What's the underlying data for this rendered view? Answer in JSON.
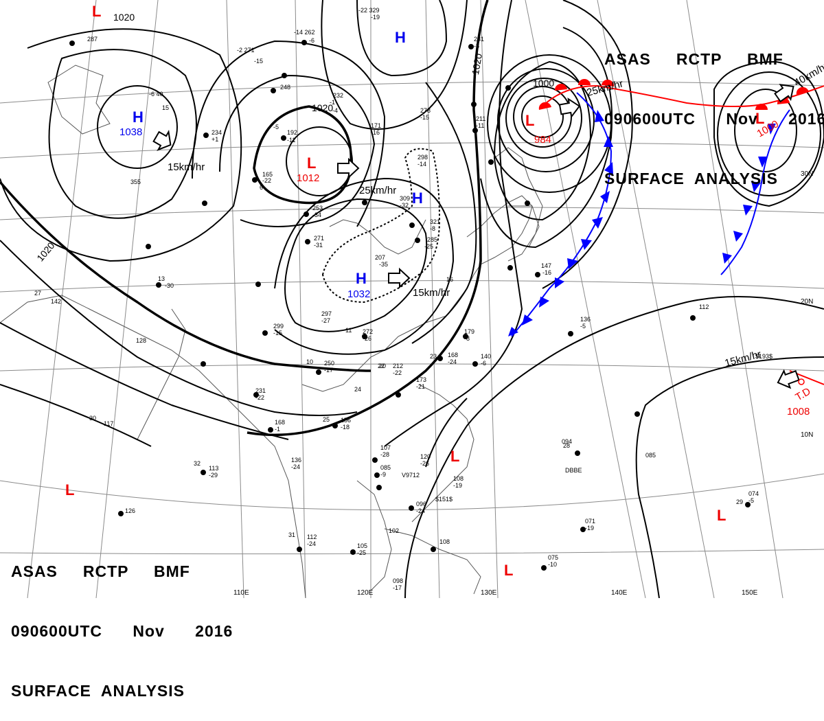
{
  "title": {
    "station_line": "ASAS     RCTP     BMF",
    "time_line": "090600UTC      Nov      2016",
    "product_line": "SURFACE  ANALYSIS"
  },
  "colors": {
    "isobar": "#000000",
    "high": "#0000ee",
    "low": "#ee0000",
    "cold_front": "#0000ff",
    "warm_front": "#ff0000",
    "grid": "#777777",
    "coast": "#444444"
  },
  "pressure_systems": [
    {
      "id": "high-siberia",
      "type": "H",
      "label": "H",
      "value": "1038"
    },
    {
      "id": "low-mongolia",
      "type": "L",
      "label": "L",
      "value": "1012"
    },
    {
      "id": "high-china",
      "type": "H",
      "label": "H",
      "value": "1032"
    },
    {
      "id": "high-korea",
      "type": "H",
      "label": "H",
      "value": ""
    },
    {
      "id": "high-north",
      "type": "H",
      "label": "H",
      "value": ""
    },
    {
      "id": "low-okhotsk",
      "type": "L",
      "label": "L",
      "value": "984"
    },
    {
      "id": "low-pacific-ne",
      "type": "L",
      "label": "L",
      "value": "1000"
    },
    {
      "id": "low-top",
      "type": "L",
      "label": "L",
      "value": ""
    },
    {
      "id": "low-scs",
      "type": "L",
      "label": "L",
      "value": ""
    },
    {
      "id": "low-bay-bengal",
      "type": "L",
      "label": "L",
      "value": ""
    },
    {
      "id": "low-w-pacific",
      "type": "L",
      "label": "L",
      "value": ""
    },
    {
      "id": "low-s-pacific",
      "type": "L",
      "label": "L",
      "value": ""
    }
  ],
  "isobar_labels": [
    "1020",
    "1020",
    "1020",
    "1000",
    "1020"
  ],
  "motion_labels": [
    "15km/hr",
    "25km/hr",
    "15km/hr",
    "25km/hr",
    "40km/hr",
    "15km/hr"
  ],
  "tropical_depression": {
    "label": "T.D",
    "value": "1008"
  },
  "lat_labels": [
    "20N",
    "10N",
    "30N"
  ],
  "lon_labels": [
    "110E",
    "120E",
    "130E",
    "140E",
    "150E"
  ],
  "station_plots": [
    "-22 329",
    "-19",
    "-14 262",
    "-6",
    "-2 271",
    "-15",
    "248",
    "232",
    "-1",
    "-4",
    "-6 40",
    "15",
    "234",
    "+1",
    "192",
    "-11",
    "165",
    "-22",
    "6",
    "-5",
    "253",
    "-34",
    "271",
    "-31",
    "299",
    "-15",
    "297",
    "-27",
    "272",
    "-26",
    "250",
    "-17",
    "231",
    "-22",
    "168",
    "-1",
    "156",
    "-18",
    "173",
    "-21",
    "212",
    "-22",
    "179",
    "-8",
    "168",
    "-24",
    "140",
    "-6",
    "136",
    "-5",
    "142",
    "128",
    "117",
    "113",
    "-29",
    "136",
    "-24",
    "126",
    "112",
    "-24",
    "105",
    "-25",
    "107",
    "-28",
    "085",
    "-9",
    "120",
    "-26",
    "108",
    "-19",
    "096",
    "-24",
    "102",
    "108",
    "075",
    "-10",
    "071",
    "-19",
    "098",
    "-17",
    "085",
    "094",
    "074",
    "-5",
    "112",
    "147",
    "-16",
    "278",
    "-15",
    "171",
    "-16",
    "298",
    "-14",
    "309",
    "-32",
    "321",
    "-8",
    "285",
    "-25",
    "207",
    "-35",
    "231",
    "-8",
    "211",
    "-11",
    "$193$",
    "$151$",
    "DBBE",
    "V9712",
    "287",
    "355",
    "13",
    "-30",
    "27",
    "30",
    "32",
    "20",
    "25",
    "29",
    "31",
    "28",
    "16",
    "10",
    "11",
    "24",
    "23",
    "22"
  ]
}
